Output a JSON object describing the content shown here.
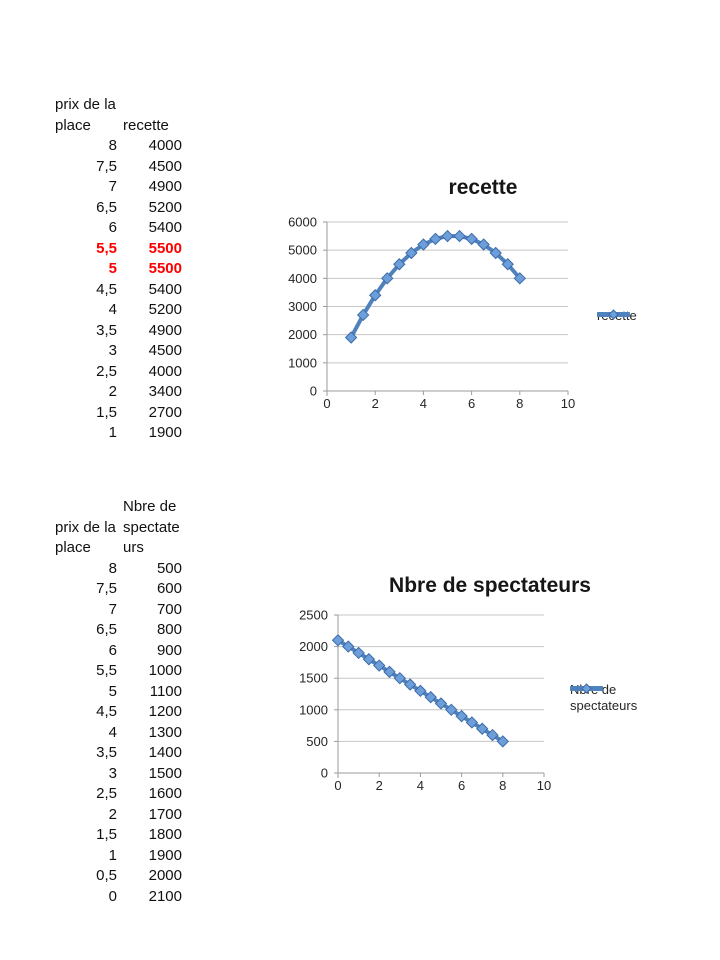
{
  "colors": {
    "series": "#4f81bd",
    "marker_fill": "#6d9eda",
    "marker_stroke": "#3c6ca8",
    "grid": "#c6c6c6",
    "axis": "#9b9b9b",
    "highlight": "#fe0000"
  },
  "tables": {
    "recette": {
      "col1_header": "prix de la place",
      "col2_header": "recette",
      "rows": [
        {
          "price": "8",
          "value": "4000",
          "highlight": false
        },
        {
          "price": "7,5",
          "value": "4500",
          "highlight": false
        },
        {
          "price": "7",
          "value": "4900",
          "highlight": false
        },
        {
          "price": "6,5",
          "value": "5200",
          "highlight": false
        },
        {
          "price": "6",
          "value": "5400",
          "highlight": false
        },
        {
          "price": "5,5",
          "value": "5500",
          "highlight": true
        },
        {
          "price": "5",
          "value": "5500",
          "highlight": true
        },
        {
          "price": "4,5",
          "value": "5400",
          "highlight": false
        },
        {
          "price": "4",
          "value": "5200",
          "highlight": false
        },
        {
          "price": "3,5",
          "value": "4900",
          "highlight": false
        },
        {
          "price": "3",
          "value": "4500",
          "highlight": false
        },
        {
          "price": "2,5",
          "value": "4000",
          "highlight": false
        },
        {
          "price": "2",
          "value": "3400",
          "highlight": false
        },
        {
          "price": "1,5",
          "value": "2700",
          "highlight": false
        },
        {
          "price": "1",
          "value": "1900",
          "highlight": false
        }
      ]
    },
    "spectateurs": {
      "col1_header": "prix de la place",
      "col2_header": "Nbre de spectateurs",
      "rows": [
        {
          "price": "8",
          "value": "500",
          "highlight": false
        },
        {
          "price": "7,5",
          "value": "600",
          "highlight": false
        },
        {
          "price": "7",
          "value": "700",
          "highlight": false
        },
        {
          "price": "6,5",
          "value": "800",
          "highlight": false
        },
        {
          "price": "6",
          "value": "900",
          "highlight": false
        },
        {
          "price": "5,5",
          "value": "1000",
          "highlight": false
        },
        {
          "price": "5",
          "value": "1100",
          "highlight": false
        },
        {
          "price": "4,5",
          "value": "1200",
          "highlight": false
        },
        {
          "price": "4",
          "value": "1300",
          "highlight": false
        },
        {
          "price": "3,5",
          "value": "1400",
          "highlight": false
        },
        {
          "price": "3",
          "value": "1500",
          "highlight": false
        },
        {
          "price": "2,5",
          "value": "1600",
          "highlight": false
        },
        {
          "price": "2",
          "value": "1700",
          "highlight": false
        },
        {
          "price": "1,5",
          "value": "1800",
          "highlight": false
        },
        {
          "price": "1",
          "value": "1900",
          "highlight": false
        },
        {
          "price": "0,5",
          "value": "2000",
          "highlight": false
        },
        {
          "price": "0",
          "value": "2100",
          "highlight": false
        }
      ]
    }
  },
  "chart_data": [
    {
      "type": "line",
      "title": "recette",
      "legend": "recette",
      "legend_position": "right",
      "marker": "diamond",
      "grid": true,
      "x": [
        1,
        1.5,
        2,
        2.5,
        3,
        3.5,
        4,
        4.5,
        5,
        5.5,
        6,
        6.5,
        7,
        7.5,
        8
      ],
      "series": [
        {
          "name": "recette",
          "values": [
            1900,
            2700,
            3400,
            4000,
            4500,
            4900,
            5200,
            5400,
            5500,
            5500,
            5400,
            5200,
            4900,
            4500,
            4000
          ]
        }
      ],
      "xlabel": "",
      "ylabel": "",
      "xlim": [
        0,
        10
      ],
      "ylim": [
        0,
        6000
      ],
      "x_ticks": [
        0,
        2,
        4,
        6,
        8,
        10
      ],
      "y_ticks": [
        0,
        1000,
        2000,
        3000,
        4000,
        5000,
        6000
      ]
    },
    {
      "type": "line",
      "title": "Nbre de spectateurs",
      "legend": "Nbre de spectateurs",
      "legend_position": "right",
      "marker": "diamond",
      "grid": true,
      "x": [
        0,
        0.5,
        1,
        1.5,
        2,
        2.5,
        3,
        3.5,
        4,
        4.5,
        5,
        5.5,
        6,
        6.5,
        7,
        7.5,
        8
      ],
      "series": [
        {
          "name": "Nbre de spectateurs",
          "values": [
            2100,
            2000,
            1900,
            1800,
            1700,
            1600,
            1500,
            1400,
            1300,
            1200,
            1100,
            1000,
            900,
            800,
            700,
            600,
            500
          ]
        }
      ],
      "xlabel": "",
      "ylabel": "",
      "xlim": [
        0,
        10
      ],
      "ylim": [
        0,
        2500
      ],
      "x_ticks": [
        0,
        2,
        4,
        6,
        8,
        10
      ],
      "y_ticks": [
        0,
        500,
        1000,
        1500,
        2000,
        2500
      ]
    }
  ]
}
